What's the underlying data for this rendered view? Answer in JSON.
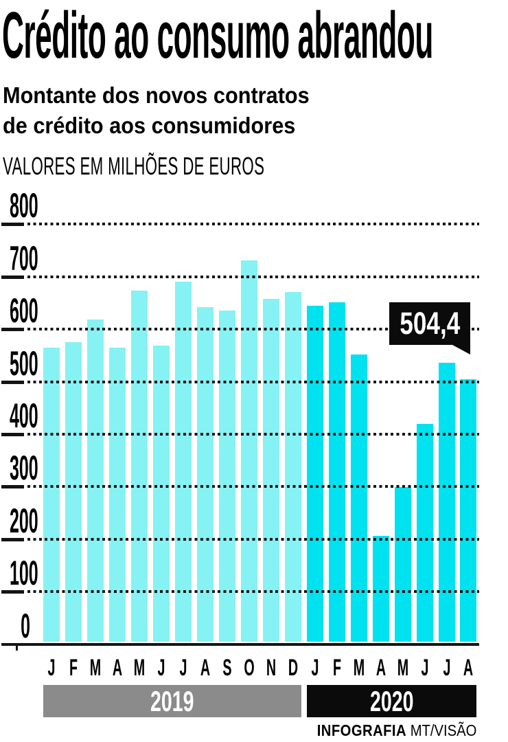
{
  "header": {
    "title": "Crédito ao consumo abrandou",
    "subtitle_lines": [
      "Montante dos novos contratos",
      "de crédito aos consumidores"
    ],
    "unit_label": "VALORES EM MILHÕES DE EUROS"
  },
  "chart_data": {
    "type": "bar",
    "title": "Crédito ao consumo abrandou",
    "subtitle": "Montante dos novos contratos de crédito aos consumidores",
    "unit": "VALORES EM MILHÕES DE EUROS",
    "ylim": [
      0,
      800
    ],
    "ytick_step": 100,
    "ytick_labels": [
      "0",
      "100",
      "200",
      "300",
      "400",
      "500",
      "600",
      "700",
      "800"
    ],
    "grid": "horizontal-dotted",
    "legend_position": "none",
    "series": [
      {
        "name": "2019",
        "bar_color": "#86F2F3",
        "band_color": "#8B8B8B",
        "categories": [
          "J",
          "F",
          "M",
          "A",
          "M",
          "J",
          "J",
          "A",
          "S",
          "O",
          "N",
          "D"
        ],
        "values": [
          565,
          575,
          618,
          565,
          673,
          569,
          690,
          642,
          635,
          731,
          658,
          671
        ]
      },
      {
        "name": "2020",
        "bar_color": "#00E2EF",
        "band_color": "#0B0B0B",
        "categories": [
          "J",
          "F",
          "M",
          "A",
          "M",
          "J",
          "J",
          "A"
        ],
        "values": [
          644,
          651,
          552,
          206,
          299,
          420,
          536,
          504.4
        ]
      }
    ],
    "annotation": {
      "label": "504,4",
      "value": 504.4,
      "series": "2020",
      "category_index": 7
    }
  },
  "footer": {
    "credit_bold": "INFOGRAFIA",
    "credit_regular": "MT/VISÃO"
  },
  "colors": {
    "background": "#FFFFFF",
    "axis": "#141414",
    "text": "#000000",
    "bar_2019": "#86F2F3",
    "bar_2020": "#00E2EF",
    "band_2019": "#8B8B8B",
    "band_2020": "#0B0B0B",
    "callout_bg": "#0B0B0B",
    "callout_text": "#FFFFFF"
  }
}
